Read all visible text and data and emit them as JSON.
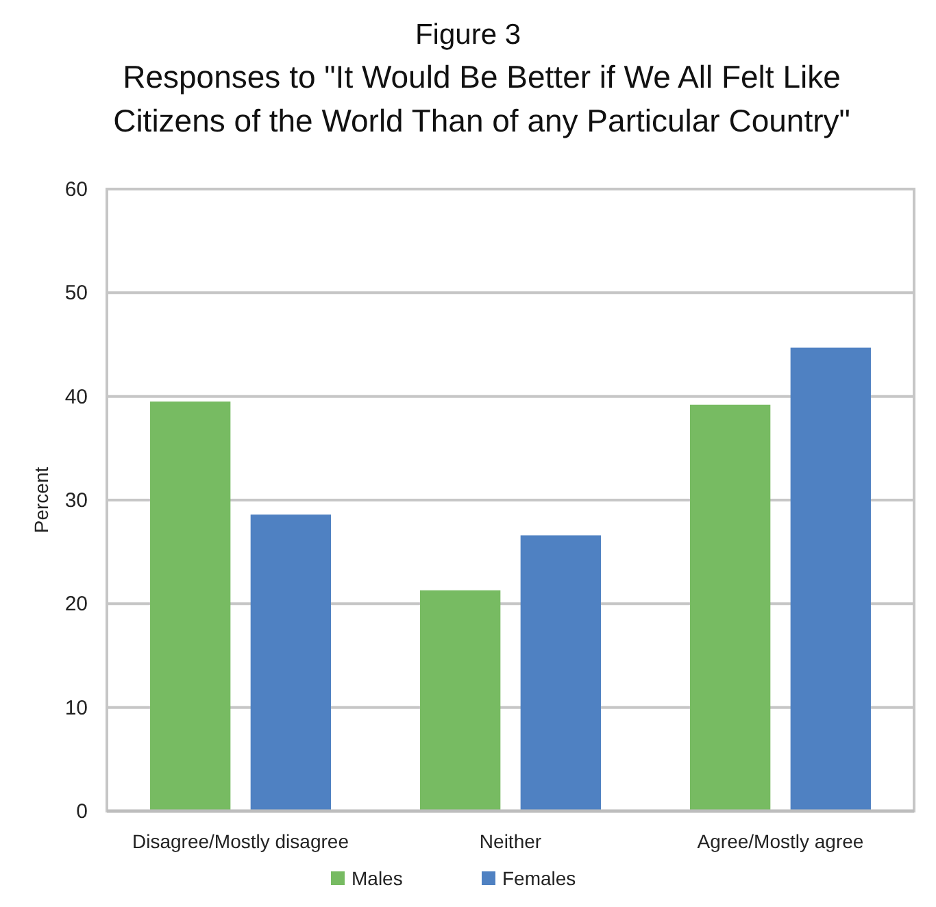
{
  "chart_data": {
    "type": "bar",
    "title": "Figure 3",
    "subtitle": "Responses to \"It Would Be Better if We All Felt Like Citizens of the World Than of any Particular Country\"",
    "ylabel": "Percent",
    "categories": [
      "Disagree/Mostly disagree",
      "Neither",
      "Agree/Mostly agree"
    ],
    "series": [
      {
        "name": "Males",
        "color": "#77bb62",
        "values": [
          39.5,
          21.3,
          39.2
        ]
      },
      {
        "name": "Females",
        "color": "#4f81c2",
        "values": [
          28.6,
          26.6,
          44.7
        ]
      }
    ],
    "ylim": [
      0,
      60
    ],
    "yticks": [
      0,
      10,
      20,
      30,
      40,
      50,
      60
    ],
    "grid": "y",
    "legend": "bottom"
  }
}
